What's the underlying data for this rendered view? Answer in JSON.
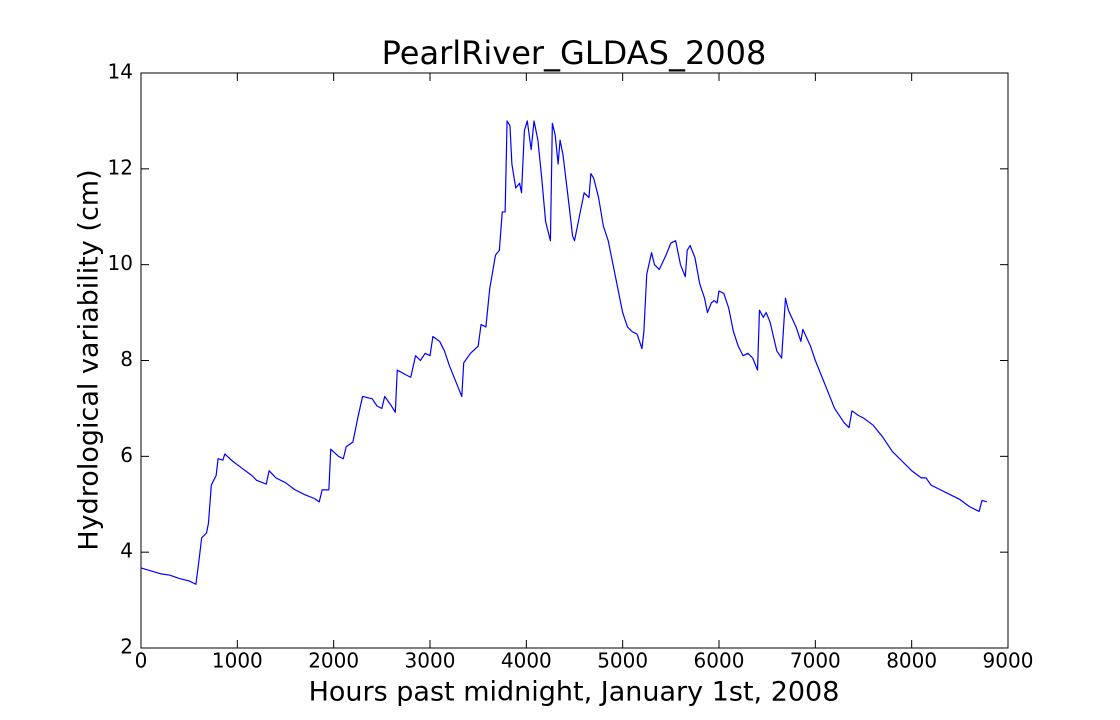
{
  "chart_data": {
    "type": "line",
    "title": "PearlRiver_GLDAS_2008",
    "x_label": "Hours past midnight, January 1st, 2008",
    "y_label": "Hydrological variability (cm)",
    "color": "#0000ff",
    "x": [
      0,
      200,
      300,
      400,
      500,
      570,
      600,
      630,
      680,
      700,
      730,
      780,
      800,
      850,
      870,
      950,
      1050,
      1150,
      1200,
      1300,
      1330,
      1400,
      1500,
      1600,
      1700,
      1800,
      1850,
      1880,
      1950,
      1970,
      2050,
      2100,
      2130,
      2200,
      2250,
      2300,
      2400,
      2450,
      2500,
      2530,
      2600,
      2640,
      2660,
      2750,
      2800,
      2850,
      2900,
      2950,
      3000,
      3030,
      3100,
      3150,
      3200,
      3270,
      3330,
      3350,
      3420,
      3500,
      3530,
      3580,
      3620,
      3680,
      3720,
      3750,
      3780,
      3800,
      3830,
      3850,
      3890,
      3930,
      3950,
      3980,
      4010,
      4050,
      4080,
      4120,
      4160,
      4200,
      4250,
      4270,
      4300,
      4330,
      4350,
      4380,
      4440,
      4480,
      4500,
      4550,
      4600,
      4650,
      4670,
      4700,
      4750,
      4800,
      4850,
      4900,
      4950,
      5000,
      5050,
      5100,
      5150,
      5200,
      5220,
      5250,
      5300,
      5330,
      5380,
      5450,
      5500,
      5550,
      5600,
      5650,
      5670,
      5700,
      5750,
      5800,
      5850,
      5880,
      5920,
      5950,
      5980,
      6000,
      6050,
      6100,
      6150,
      6200,
      6250,
      6300,
      6350,
      6400,
      6420,
      6460,
      6490,
      6530,
      6600,
      6650,
      6690,
      6720,
      6800,
      6850,
      6870,
      6950,
      7000,
      7100,
      7200,
      7300,
      7350,
      7380,
      7450,
      7500,
      7600,
      7700,
      7800,
      7900,
      8000,
      8100,
      8150,
      8200,
      8300,
      8400,
      8500,
      8600,
      8700,
      8730,
      8780
    ],
    "values": [
      3.67,
      3.55,
      3.52,
      3.45,
      3.4,
      3.33,
      3.8,
      4.3,
      4.4,
      4.6,
      5.4,
      5.6,
      5.95,
      5.92,
      6.05,
      5.9,
      5.75,
      5.6,
      5.5,
      5.42,
      5.7,
      5.55,
      5.45,
      5.3,
      5.2,
      5.12,
      5.05,
      5.3,
      5.3,
      6.15,
      6.0,
      5.95,
      6.2,
      6.3,
      6.8,
      7.25,
      7.2,
      7.05,
      7.0,
      7.25,
      7.05,
      6.92,
      7.8,
      7.7,
      7.65,
      8.1,
      8.0,
      8.15,
      8.1,
      8.5,
      8.4,
      8.2,
      7.9,
      7.55,
      7.25,
      7.95,
      8.15,
      8.3,
      8.75,
      8.7,
      9.5,
      10.2,
      10.3,
      11.1,
      11.1,
      13.0,
      12.9,
      12.1,
      11.6,
      11.7,
      11.5,
      12.8,
      13.0,
      12.4,
      13.0,
      12.6,
      11.8,
      10.9,
      10.5,
      12.95,
      12.7,
      12.1,
      12.6,
      12.3,
      11.3,
      10.6,
      10.5,
      11.0,
      11.5,
      11.4,
      11.9,
      11.8,
      11.4,
      10.8,
      10.5,
      10.0,
      9.5,
      9.0,
      8.7,
      8.6,
      8.55,
      8.25,
      8.6,
      9.8,
      10.25,
      10.0,
      9.9,
      10.2,
      10.45,
      10.5,
      10.0,
      9.75,
      10.3,
      10.4,
      10.15,
      9.6,
      9.3,
      9.0,
      9.2,
      9.25,
      9.2,
      9.45,
      9.4,
      9.1,
      8.6,
      8.3,
      8.1,
      8.15,
      8.05,
      7.8,
      9.05,
      8.9,
      9.0,
      8.8,
      8.2,
      8.05,
      9.3,
      9.05,
      8.7,
      8.4,
      8.65,
      8.3,
      8.0,
      7.5,
      7.0,
      6.7,
      6.6,
      6.95,
      6.85,
      6.8,
      6.65,
      6.4,
      6.1,
      5.9,
      5.7,
      5.55,
      5.55,
      5.4,
      5.3,
      5.2,
      5.1,
      4.95,
      4.85,
      5.08,
      5.05
    ],
    "xlim": [
      0,
      9000
    ],
    "xticks": [
      0,
      1000,
      2000,
      3000,
      4000,
      5000,
      6000,
      7000,
      8000,
      9000
    ],
    "ylim": [
      2,
      14
    ],
    "yticks": [
      2,
      4,
      6,
      8,
      10,
      12,
      14
    ]
  }
}
